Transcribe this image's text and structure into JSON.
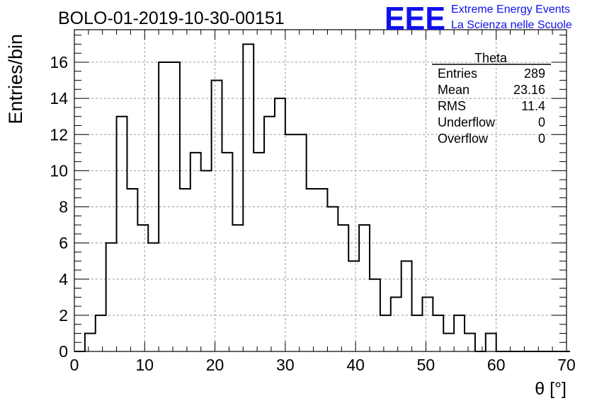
{
  "header": {
    "run_title": "BOLO-01-2019-10-30-00151",
    "logo_text": "EEE",
    "logo_line1": "Extreme Energy Events",
    "logo_line2": "La Scienza nelle Scuole"
  },
  "stats_box": {
    "title": "Theta",
    "rows": [
      {
        "label": "Entries",
        "value": "289"
      },
      {
        "label": "Mean",
        "value": "23.16"
      },
      {
        "label": "RMS",
        "value": "11.4"
      },
      {
        "label": "Underflow",
        "value": "0"
      },
      {
        "label": "Overflow",
        "value": "0"
      }
    ]
  },
  "colors": {
    "histogram": "#000000",
    "grid": "#999999",
    "logo": "#1010ee"
  },
  "chart_data": {
    "type": "bar",
    "histogram_step": true,
    "title": "BOLO-01-2019-10-30-00151",
    "xlabel": "θ [°]",
    "ylabel": "Entries/bin",
    "xlim": [
      0,
      70
    ],
    "ylim": [
      0,
      17.8
    ],
    "x_ticks": [
      0,
      10,
      20,
      30,
      40,
      50,
      60,
      70
    ],
    "y_ticks": [
      0,
      2,
      4,
      6,
      8,
      10,
      12,
      14,
      16
    ],
    "grid": true,
    "bin_width": 1.5,
    "bin_start": 0,
    "values": [
      0,
      1,
      2,
      6,
      13,
      9,
      7,
      6,
      16,
      16,
      9,
      11,
      10,
      15,
      11,
      7,
      17,
      11,
      13,
      14,
      12,
      12,
      9,
      9,
      8,
      7,
      5,
      7,
      4,
      2,
      3,
      5,
      2,
      3,
      2,
      1,
      2,
      1,
      0,
      1,
      0,
      0,
      0,
      0,
      0,
      0,
      0
    ]
  }
}
